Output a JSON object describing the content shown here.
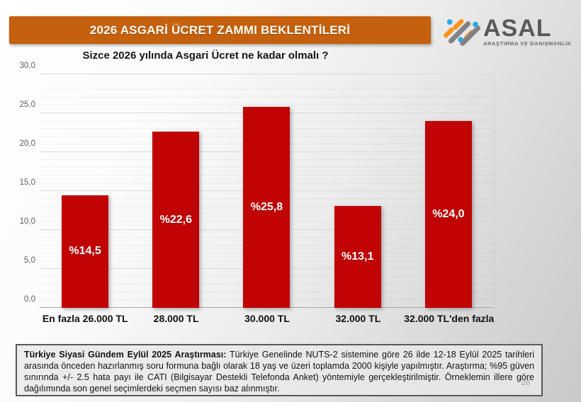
{
  "banner": {
    "title": "2026 ASGARİ ÜCRET ZAMMI BEKLENTİLERİ",
    "background_color": "#C4600E"
  },
  "logo": {
    "name": "ASAL",
    "tagline": "ARAŞTIRMA VE DANIŞMANLIK",
    "colors": {
      "orange": "#F7941E",
      "blue": "#29ABE2",
      "gray": "#808285",
      "text": "#595A5C"
    }
  },
  "chart_data": {
    "type": "bar",
    "title": "Sizce 2026 yılında Asgari Ücret ne kadar olmalı ?",
    "categories": [
      "En fazla 26.000 TL",
      "28.000 TL",
      "30.000 TL",
      "32.000 TL",
      "32.000 TL'den fazla"
    ],
    "values": [
      14.5,
      22.6,
      25.8,
      13.1,
      24.0
    ],
    "value_labels": [
      "%14,5",
      "%22,6",
      "%25,8",
      "%13,1",
      "%24,0"
    ],
    "xlabel": "",
    "ylabel": "",
    "ylim": [
      0,
      30
    ],
    "ytick_step": 5,
    "ytick_labels": [
      "0,0",
      "5,0",
      "10,0",
      "15,0",
      "20,0",
      "25,0",
      "30,0"
    ],
    "minor_grid_step": 1,
    "grid": true,
    "legend": false,
    "bar_color": "#C00404",
    "label_position": "center-inside"
  },
  "footer": {
    "lead": "Türkiye Siyasi Gündem Eylül 2025 Araştırması:",
    "text": " Türkiye Genelinde NUTS-2 sistemine göre 26 ilde 12-18 Eylül 2025 tarihleri arasında önceden hazırlanmış soru formuna bağlı olarak 18 yaş ve üzeri toplamda 2000 kişiyle yapılmıştır. Araştırma; %95 güven sınırında +/- 2.5 hata payı ile CATI (Bilgisayar Destekli Telefonda Anket) yöntemiyle gerçekleştirilmiştir. Örneklemin illere göre dağılımında son genel seçimlerdeki seçmen sayısı baz alınmıştır.",
    "page_number": "26"
  }
}
